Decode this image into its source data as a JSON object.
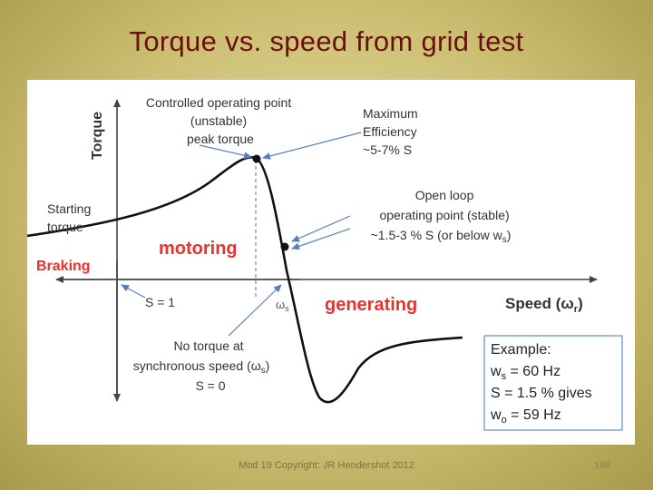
{
  "slide": {
    "title": "Torque vs. speed from grid test",
    "footer": "Mod 19 Copyright: JR Hendershot 2012",
    "page_number": "189"
  },
  "diagram": {
    "axis_y_label": "Torque",
    "axis_x_label_prefix": "Speed (",
    "axis_x_label_symbol": "ω",
    "axis_x_label_sub": "r",
    "axis_x_label_suffix": ")",
    "controlled_point": [
      "Controlled operating point",
      "(unstable)",
      "peak torque"
    ],
    "max_efficiency": [
      "Maximum",
      "Efficiency",
      "~5-7% S"
    ],
    "open_loop": [
      "Open loop",
      "operating point (stable)",
      "~1.5-3 % S (or below w",
      "s",
      ")"
    ],
    "starting_torque": [
      "Starting",
      "torque"
    ],
    "braking": "Braking",
    "motoring": "motoring",
    "generating": "generating",
    "s_equals_1": "S = 1",
    "omega_s_symbol": "ω",
    "omega_s_sub": "s",
    "no_torque": [
      "No torque at",
      "synchronous speed (",
      "ω",
      "s",
      ")",
      "S = 0"
    ],
    "example": {
      "title": "Example:",
      "ws_prefix": "w",
      "ws_sub": "s",
      "ws_value": " = 60 Hz",
      "slip": "S = 1.5 % gives",
      "wo_prefix": "w",
      "wo_sub": "o",
      "wo_value": " = 59 Hz"
    },
    "colors": {
      "accent_red": "#e8322c",
      "title_red": "#6b1010",
      "curve": "#111111",
      "arrow": "#5a7fc0",
      "example_border": "#7d9bd0"
    }
  }
}
